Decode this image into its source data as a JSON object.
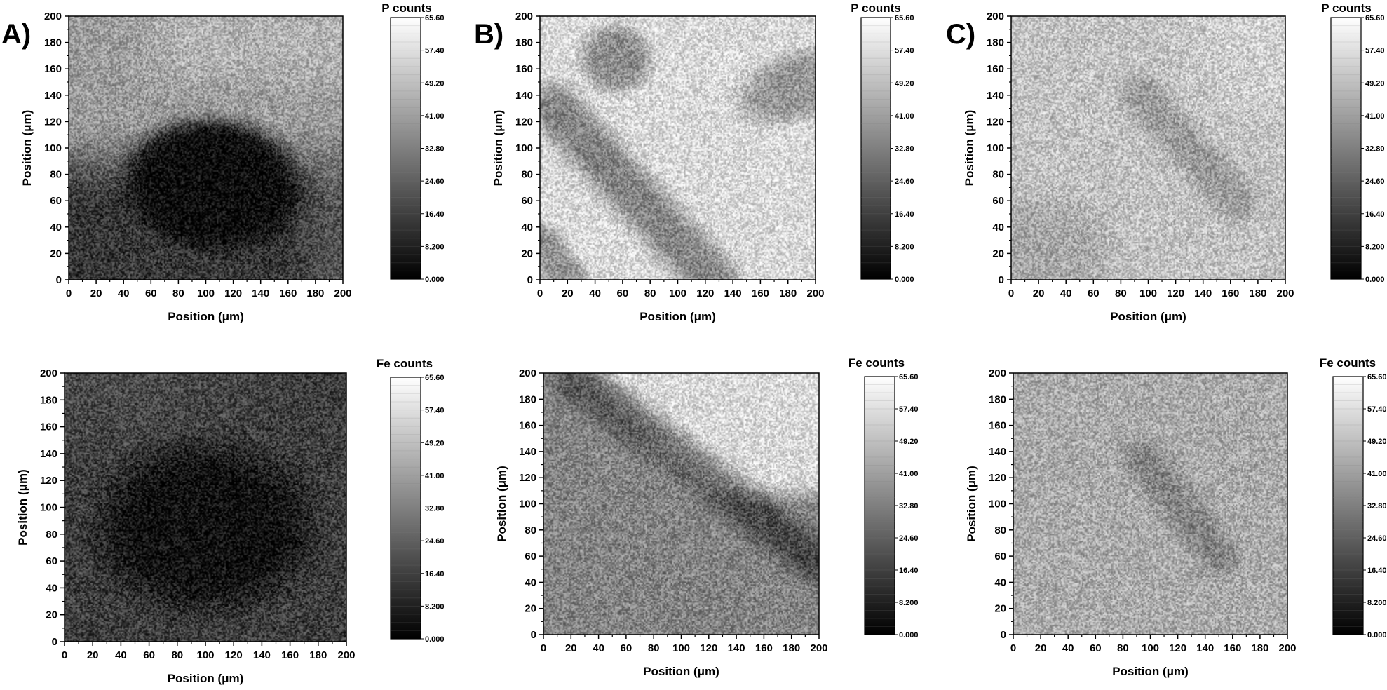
{
  "panel_labels": [
    "A)",
    "B)",
    "C)"
  ],
  "colorbar_ticks": [
    "65.60",
    "57.40",
    "49.20",
    "41.00",
    "32.80",
    "24.60",
    "16.40",
    "8.200",
    "0.000"
  ],
  "chart_data": [
    {
      "type": "heatmap",
      "panel": "A)",
      "title": "P counts",
      "xlabel": "Position (μm)",
      "ylabel": "Position (μm)",
      "xlim": [
        0,
        200
      ],
      "ylim": [
        0,
        200
      ],
      "xticks": [
        0,
        20,
        40,
        60,
        80,
        100,
        120,
        140,
        160,
        180,
        200
      ],
      "yticks": [
        0,
        20,
        40,
        60,
        80,
        100,
        120,
        140,
        160,
        180,
        200
      ],
      "colorbar": {
        "label": "P counts",
        "min": 0,
        "max": 65.6,
        "colors": [
          "#000000",
          "#ffffff"
        ]
      },
      "grid": false,
      "features": [
        {
          "shape": "ellipse",
          "cx": 105,
          "cy": 72,
          "rx": 62,
          "ry": 48,
          "level": 2,
          "rotation_deg": -6
        },
        {
          "shape": "region",
          "description": "left bottom",
          "level": 12
        },
        {
          "shape": "region",
          "description": "top",
          "level": 38
        }
      ]
    },
    {
      "type": "heatmap",
      "panel": "B)",
      "title": "P counts",
      "xlabel": "Position (μm)",
      "ylabel": "Position (μm)",
      "xlim": [
        0,
        200
      ],
      "ylim": [
        0,
        200
      ],
      "xticks": [
        0,
        20,
        40,
        60,
        80,
        100,
        120,
        140,
        160,
        180,
        200
      ],
      "yticks": [
        0,
        20,
        40,
        60,
        80,
        100,
        120,
        140,
        160,
        180,
        200
      ],
      "colorbar": {
        "label": "P counts",
        "min": 0,
        "max": 65.6,
        "colors": [
          "#000000",
          "#ffffff"
        ]
      },
      "grid": false,
      "background_level": 56,
      "features": [
        {
          "shape": "band",
          "from": [
            20,
            125
          ],
          "to": [
            125,
            0
          ],
          "width": 28,
          "level": 34
        },
        {
          "shape": "ellipse",
          "cx": 55,
          "cy": 170,
          "rx": 22,
          "ry": 22,
          "level": 34
        },
        {
          "shape": "ellipse",
          "cx": 195,
          "cy": 150,
          "rx": 40,
          "ry": 22,
          "level": 38
        }
      ]
    },
    {
      "type": "heatmap",
      "panel": "C)",
      "title": "P counts",
      "xlabel": "Position (μm)",
      "ylabel": "Position (μm)",
      "xlim": [
        0,
        200
      ],
      "ylim": [
        0,
        200
      ],
      "xticks": [
        0,
        20,
        40,
        60,
        80,
        100,
        120,
        140,
        160,
        180,
        200
      ],
      "yticks": [
        0,
        20,
        40,
        60,
        80,
        100,
        120,
        140,
        160,
        180,
        200
      ],
      "colorbar": {
        "label": "P counts",
        "min": 0,
        "max": 65.6,
        "colors": [
          "#000000",
          "#ffffff"
        ]
      },
      "grid": false,
      "background_level": 50,
      "features": [
        {
          "shape": "band",
          "from": [
            95,
            140
          ],
          "to": [
            165,
            60
          ],
          "width": 22,
          "level": 40
        },
        {
          "shape": "region",
          "description": "left bottom",
          "level": 43
        }
      ]
    },
    {
      "type": "heatmap",
      "panel": "A)",
      "title": "Fe counts",
      "xlabel": "Position (μm)",
      "ylabel": "Position (μm)",
      "xlim": [
        0,
        200
      ],
      "ylim": [
        0,
        200
      ],
      "xticks": [
        0,
        20,
        40,
        60,
        80,
        100,
        120,
        140,
        160,
        180,
        200
      ],
      "yticks": [
        0,
        20,
        40,
        60,
        80,
        100,
        120,
        140,
        160,
        180,
        200
      ],
      "colorbar": {
        "label": "Fe counts",
        "min": 0,
        "max": 65.6,
        "colors": [
          "#000000",
          "#ffffff"
        ]
      },
      "grid": false,
      "background_level": 16,
      "features": [
        {
          "shape": "ellipse",
          "cx": 100,
          "cy": 85,
          "rx": 70,
          "ry": 55,
          "level": 3
        }
      ]
    },
    {
      "type": "heatmap",
      "panel": "B)",
      "title": "Fe counts",
      "xlabel": "Position (μm)",
      "ylabel": "Position (μm)",
      "xlim": [
        0,
        200
      ],
      "ylim": [
        0,
        200
      ],
      "xticks": [
        0,
        20,
        40,
        60,
        80,
        100,
        120,
        140,
        160,
        180,
        200
      ],
      "yticks": [
        0,
        20,
        40,
        60,
        80,
        100,
        120,
        140,
        160,
        180,
        200
      ],
      "colorbar": {
        "label": "Fe counts",
        "min": 0,
        "max": 65.6,
        "colors": [
          "#000000",
          "#ffffff"
        ]
      },
      "grid": false,
      "background_level": 33,
      "features": [
        {
          "shape": "region",
          "description": "upper right",
          "level": 54
        },
        {
          "shape": "band",
          "from": [
            30,
            190
          ],
          "to": [
            200,
            60
          ],
          "width": 28,
          "level": 20
        }
      ]
    },
    {
      "type": "heatmap",
      "panel": "C)",
      "title": "Fe counts",
      "xlabel": "Position (μm)",
      "ylabel": "Position (μm)",
      "xlim": [
        0,
        200
      ],
      "ylim": [
        0,
        200
      ],
      "xticks": [
        0,
        20,
        40,
        60,
        80,
        100,
        120,
        140,
        160,
        180,
        200
      ],
      "yticks": [
        0,
        20,
        40,
        60,
        80,
        100,
        120,
        140,
        160,
        180,
        200
      ],
      "colorbar": {
        "label": "Fe counts",
        "min": 0,
        "max": 65.6,
        "colors": [
          "#000000",
          "#ffffff"
        ]
      },
      "grid": false,
      "background_level": 44,
      "features": [
        {
          "shape": "band",
          "from": [
            95,
            135
          ],
          "to": [
            150,
            60
          ],
          "width": 22,
          "level": 34
        }
      ]
    }
  ]
}
